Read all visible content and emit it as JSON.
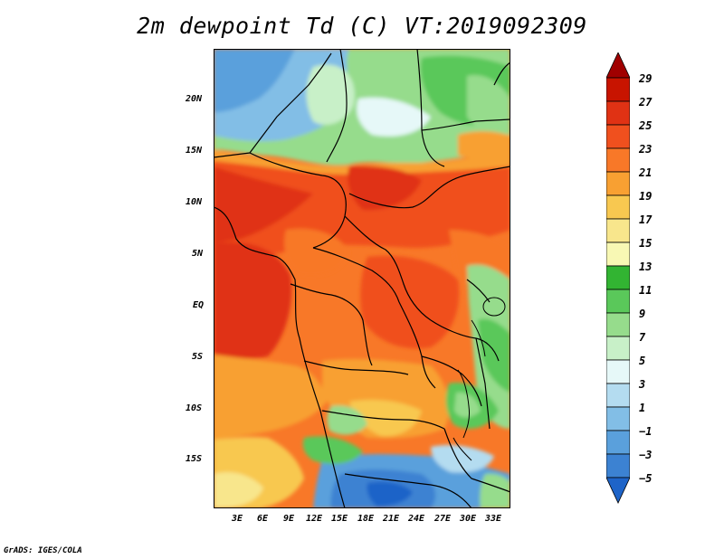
{
  "title": "2m dewpoint Td (C) VT:2019092309",
  "credit": "GrADS: IGES/COLA",
  "map": {
    "variable": "2m dewpoint",
    "units": "C",
    "valid_time": "2019092309",
    "lat_ticks": [
      "20N",
      "15N",
      "10N",
      "5N",
      "EQ",
      "5S",
      "10S",
      "15S"
    ],
    "lon_ticks": [
      "3E",
      "6E",
      "9E",
      "12E",
      "15E",
      "18E",
      "21E",
      "24E",
      "27E",
      "30E",
      "33E"
    ]
  },
  "colorbar": {
    "levels": [
      "29",
      "27",
      "25",
      "23",
      "21",
      "19",
      "17",
      "15",
      "13",
      "11",
      "9",
      "7",
      "5",
      "3",
      "1",
      "−1",
      "−3",
      "−5"
    ],
    "colors": [
      "#a00000",
      "#c81400",
      "#e03214",
      "#f0501e",
      "#f87828",
      "#f8a032",
      "#f8c850",
      "#f8e68c",
      "#f8f8b4",
      "#32b432",
      "#5ac85a",
      "#96dc8c",
      "#c8f0c8",
      "#e6f8f8",
      "#b4dcf0",
      "#82bee6",
      "#5aa0dc",
      "#3c82d2",
      "#1e64c8"
    ]
  }
}
